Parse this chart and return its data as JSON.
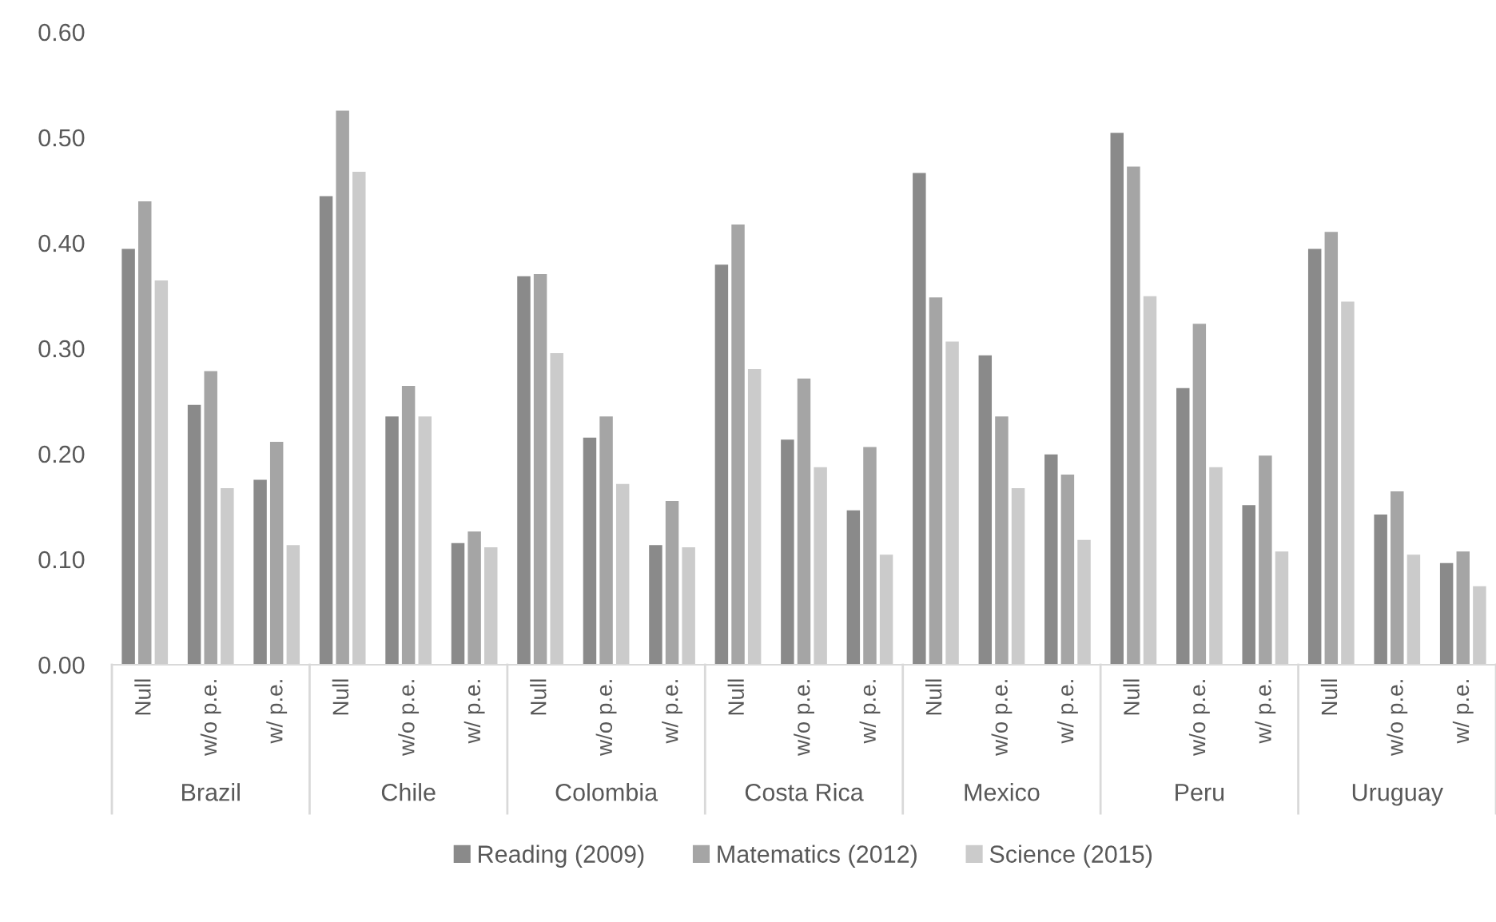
{
  "chart_data": {
    "type": "bar",
    "categories": [
      "Null",
      "w/o p.e.",
      "w/ p.e.",
      "Null",
      "w/o p.e.",
      "w/ p.e.",
      "Null",
      "w/o p.e.",
      "w/ p.e.",
      "Null",
      "w/o p.e.",
      "w/ p.e.",
      "Null",
      "w/o p.e.",
      "w/ p.e.",
      "Null",
      "w/o p.e.",
      "w/ p.e.",
      "Null",
      "w/o p.e.",
      "w/ p.e."
    ],
    "annotations": [
      "Brazil",
      "Chile",
      "Colombia",
      "Costa Rica",
      "Mexico",
      "Peru",
      "Uruguay"
    ],
    "series": [
      {
        "name": "Reading (2009)",
        "color": "#8a8a8a",
        "values": [
          0.395,
          0.247,
          0.176,
          0.445,
          0.236,
          0.116,
          0.369,
          0.216,
          0.114,
          0.38,
          0.214,
          0.147,
          0.467,
          0.294,
          0.2,
          0.505,
          0.263,
          0.152,
          0.395,
          0.143,
          0.097
        ]
      },
      {
        "name": "Matematics (2012)",
        "color": "#a5a5a5",
        "values": [
          0.44,
          0.279,
          0.212,
          0.526,
          0.265,
          0.127,
          0.371,
          0.236,
          0.156,
          0.418,
          0.272,
          0.207,
          0.349,
          0.236,
          0.181,
          0.473,
          0.324,
          0.199,
          0.411,
          0.165,
          0.108
        ]
      },
      {
        "name": "Science (2015)",
        "color": "#cbcbcb",
        "values": [
          0.365,
          0.168,
          0.114,
          0.468,
          0.236,
          0.112,
          0.296,
          0.172,
          0.112,
          0.281,
          0.188,
          0.105,
          0.307,
          0.168,
          0.119,
          0.35,
          0.188,
          0.108,
          0.345,
          0.105,
          0.075
        ]
      }
    ],
    "ylim": [
      0,
      0.6
    ],
    "yticks": [
      {
        "value": 0,
        "label": "0.00"
      },
      {
        "value": 0.1,
        "label": "0.10"
      },
      {
        "value": 0.2,
        "label": "0.20"
      },
      {
        "value": 0.3,
        "label": "0.30"
      },
      {
        "value": 0.4,
        "label": "0.40"
      },
      {
        "value": 0.5,
        "label": "0.50"
      },
      {
        "value": 0.6,
        "label": "0.60"
      }
    ],
    "grid": false,
    "legend": "bottom"
  }
}
